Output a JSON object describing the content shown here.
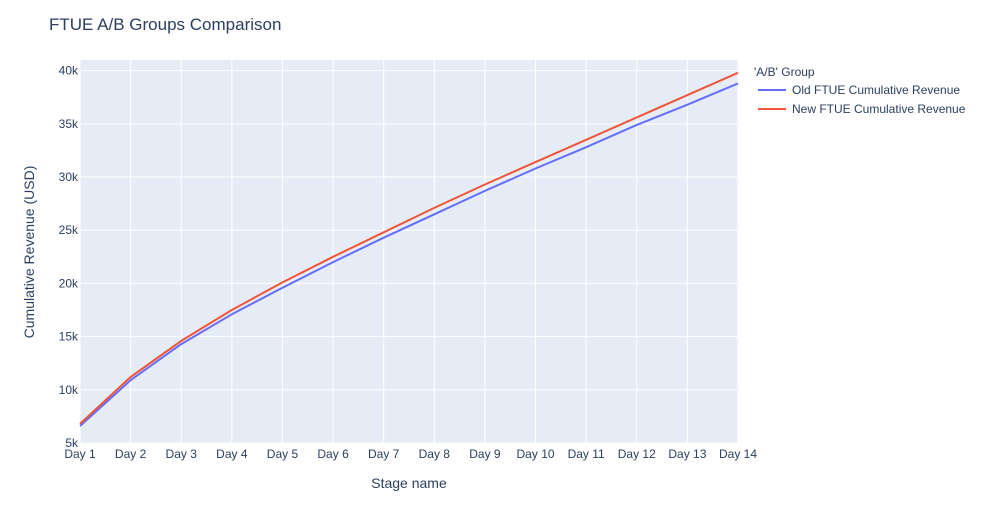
{
  "chart_data": {
    "type": "line",
    "title": "FTUE A/B Groups Comparison",
    "xlabel": "Stage name",
    "ylabel": "Cumulative Revenue (USD)",
    "categories": [
      "Day 1",
      "Day 2",
      "Day 3",
      "Day 4",
      "Day 5",
      "Day 6",
      "Day 7",
      "Day 8",
      "Day 9",
      "Day 10",
      "Day 11",
      "Day 12",
      "Day 13",
      "Day 14"
    ],
    "ylim": [
      5000,
      41000
    ],
    "yticks": [
      5000,
      10000,
      15000,
      20000,
      25000,
      30000,
      35000,
      40000
    ],
    "ytick_labels": [
      "5k",
      "10k",
      "15k",
      "20k",
      "25k",
      "30k",
      "35k",
      "40k"
    ],
    "grid": true,
    "legend": {
      "title": "'A/B' Group",
      "placement": "top-right-outside"
    },
    "series": [
      {
        "name": "Old FTUE Cumulative Revenue",
        "color": "#636efa",
        "values": [
          6600,
          10900,
          14300,
          17100,
          19600,
          22000,
          24300,
          26500,
          28700,
          30800,
          32800,
          34900,
          36800,
          38800
        ]
      },
      {
        "name": "New FTUE Cumulative Revenue",
        "color": "#ef553b",
        "values": [
          6800,
          11200,
          14600,
          17500,
          20100,
          22500,
          24800,
          27100,
          29300,
          31400,
          33500,
          35600,
          37700,
          39800
        ]
      }
    ]
  }
}
